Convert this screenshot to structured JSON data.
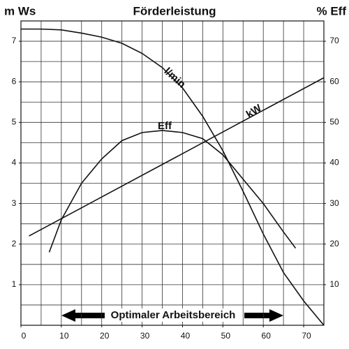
{
  "chart_data": {
    "type": "line",
    "title": "Förderleistung",
    "y_label": "m Ws",
    "y2_label": "% Eff",
    "annotation": "Optimaler Arbeitsbereich",
    "xlim": [
      0,
      75
    ],
    "ylim": [
      0,
      7.5
    ],
    "y2lim": [
      0,
      75
    ],
    "xticks": [
      0,
      10,
      20,
      30,
      40,
      50,
      60,
      70
    ],
    "yticks": [
      1,
      2,
      3,
      4,
      5,
      6,
      7
    ],
    "y2ticks": [
      10,
      20,
      30,
      40,
      50,
      60,
      70
    ],
    "grid": true,
    "minor_grid": {
      "x": 5,
      "y": 0.5
    },
    "series": [
      {
        "name": "l/min",
        "color": "#111111",
        "x": [
          0,
          5,
          10,
          15,
          20,
          25,
          30,
          35,
          40,
          45,
          50,
          55,
          60,
          65,
          70,
          75
        ],
        "values": [
          7.3,
          7.3,
          7.28,
          7.2,
          7.1,
          6.95,
          6.7,
          6.35,
          5.85,
          5.15,
          4.3,
          3.3,
          2.25,
          1.3,
          0.6,
          0
        ]
      },
      {
        "name": "kW",
        "color": "#111111",
        "x": [
          2,
          75
        ],
        "values": [
          2.2,
          6.1
        ]
      },
      {
        "name": "Eff",
        "color": "#111111",
        "axis": "y2",
        "x": [
          7,
          10,
          15,
          20,
          25,
          30,
          35,
          40,
          45,
          50,
          55,
          60,
          65,
          68
        ],
        "values": [
          18,
          26,
          35,
          41,
          45.5,
          47.5,
          48,
          47.5,
          46,
          42,
          36,
          30,
          23,
          19
        ]
      }
    ]
  }
}
